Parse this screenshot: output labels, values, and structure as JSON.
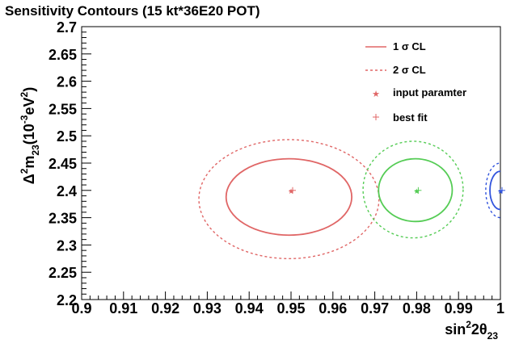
{
  "chart_data": {
    "type": "contour",
    "title": "Sensitivity Contours (15 kt*36E20 POT)",
    "xlabel": {
      "base": "sin",
      "sup": "2",
      "mid": "2θ",
      "sub": "23"
    },
    "ylabel": {
      "pre": "Δ",
      "sup1": "2",
      "m": "m",
      "sub": "23",
      "open": "(10",
      "sup2": "-3",
      "unit": "eV",
      "sup3": "2",
      "close": ")"
    },
    "xlim": [
      0.9,
      1.0
    ],
    "ylim": [
      2.2,
      2.7
    ],
    "x_ticks": [
      "0.9",
      "0.91",
      "0.92",
      "0.93",
      "0.94",
      "0.95",
      "0.96",
      "0.97",
      "0.98",
      "0.99",
      "1"
    ],
    "y_ticks": [
      "2.2",
      "2.25",
      "2.3",
      "2.35",
      "2.4",
      "2.45",
      "2.5",
      "2.55",
      "2.6",
      "2.65",
      "2.7"
    ],
    "grid": false,
    "legend_position": "top-right",
    "legend": [
      {
        "label": "1 σ CL",
        "style": "solid-line",
        "color": "#e06666"
      },
      {
        "label": "2 σ CL",
        "style": "dashed-line",
        "color": "#e06666"
      },
      {
        "label": "input paramter",
        "style": "star-marker",
        "color": "#e06666"
      },
      {
        "label": "best fit",
        "style": "plus-marker",
        "color": "#e06666"
      }
    ],
    "contour_sets": [
      {
        "color": "#e06666",
        "input_point": [
          0.95,
          2.4
        ],
        "best_fit": [
          0.95,
          2.4
        ],
        "one_sigma": {
          "x_range": [
            0.9345,
            0.9645
          ],
          "y_range": [
            2.318,
            2.458
          ]
        },
        "two_sigma": {
          "x_range": [
            0.928,
            0.971
          ],
          "y_range": [
            2.275,
            2.493
          ]
        }
      },
      {
        "color": "#55cc55",
        "input_point": [
          0.98,
          2.4
        ],
        "best_fit": [
          0.98,
          2.4
        ],
        "one_sigma": {
          "x_range": [
            0.9709,
            0.9885
          ],
          "y_range": [
            2.343,
            2.458
          ]
        },
        "two_sigma": {
          "x_range": [
            0.9672,
            0.9911
          ],
          "y_range": [
            2.313,
            2.49
          ]
        }
      },
      {
        "color": "#3355dd",
        "input_point": [
          1.0,
          2.4
        ],
        "best_fit": [
          1.0,
          2.4
        ],
        "one_sigma": {
          "x_range": [
            0.9975,
            1.0025
          ],
          "y_range": [
            2.365,
            2.435
          ]
        },
        "two_sigma": {
          "x_range": [
            0.9965,
            1.0035
          ],
          "y_range": [
            2.35,
            2.45
          ]
        }
      }
    ]
  }
}
